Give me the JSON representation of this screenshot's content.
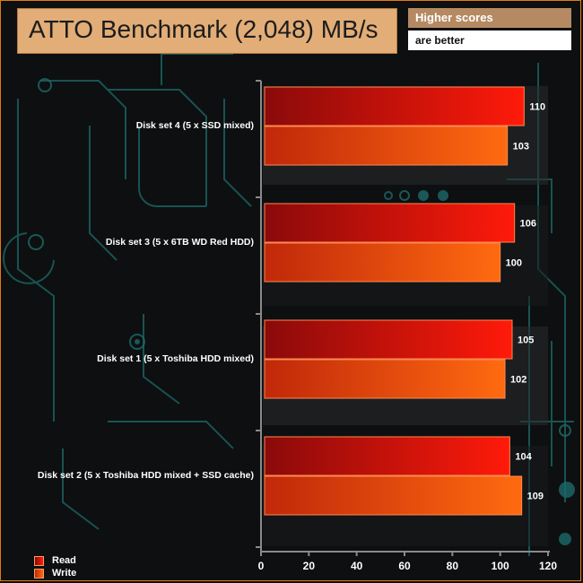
{
  "header": {
    "title": "ATTO Benchmark (2,048) MB/s",
    "note_line1": "Higher scores",
    "note_line2": "are better"
  },
  "colors": {
    "read_dark": "#8a0a0a",
    "read_light": "#ff1a0a",
    "write_dark": "#c0280a",
    "write_light": "#ff6a10",
    "accent": "#e07a10",
    "circuit": "#1d6a6a"
  },
  "chart_data": {
    "type": "bar",
    "orientation": "horizontal",
    "categories": [
      "Disk set 4 (5 x SSD mixed)",
      "Disk set 3 (5 x 6TB WD Red HDD)",
      "Disk set 1 (5 x Toshiba HDD mixed)",
      "Disk set 2 (5 x Toshiba HDD mixed + SSD cache)"
    ],
    "series": [
      {
        "name": "Read",
        "values": [
          110,
          106,
          105,
          104
        ]
      },
      {
        "name": "Write",
        "values": [
          103,
          100,
          102,
          109
        ]
      }
    ],
    "xlim": [
      0,
      120
    ],
    "x_ticks": [
      "0",
      "20",
      "40",
      "60",
      "80",
      "100",
      "120"
    ],
    "title": "ATTO Benchmark (2,048) MB/s",
    "xlabel": "",
    "ylabel": "",
    "grid": false,
    "legend_position": "bottom-left"
  }
}
